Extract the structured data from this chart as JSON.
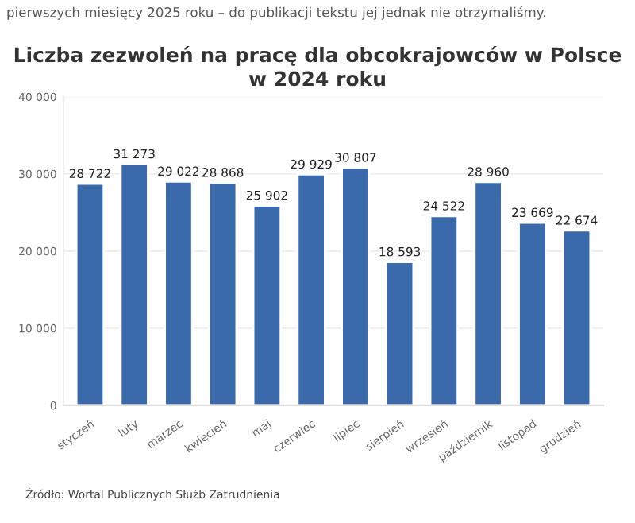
{
  "chart_data": {
    "type": "bar",
    "title": "Liczba zezwoleń na pracę dla obcokrajowców w Polsce\nw 2024 roku",
    "categories": [
      "styczeń",
      "luty",
      "marzec",
      "kwiecień",
      "maj",
      "czerwiec",
      "lipiec",
      "sierpień",
      "wrzesień",
      "październik",
      "listopad",
      "grudzień"
    ],
    "values": [
      28722,
      31273,
      29022,
      28868,
      25902,
      29929,
      30807,
      18593,
      24522,
      28960,
      23669,
      22674
    ],
    "value_labels": [
      "28 722",
      "31 273",
      "29 022",
      "28 868",
      "25 902",
      "29 929",
      "30 807",
      "18 593",
      "24 522",
      "28 960",
      "23 669",
      "22 674"
    ],
    "color": "#3b6aaa",
    "ylim": [
      0,
      40000
    ],
    "yticks": [
      {
        "value": 0,
        "label": "0"
      },
      {
        "value": 10000,
        "label": "10 000"
      },
      {
        "value": 20000,
        "label": "20 000"
      },
      {
        "value": 30000,
        "label": "30 000"
      },
      {
        "value": 40000,
        "label": "40 000"
      }
    ],
    "grid": "y",
    "annotations": [
      "pierwszych miesięcy 2025 roku – do publikacji tekstu jej jednak nie otrzymaliśmy.",
      "Źródło: Wortal Publicznych Służb Zatrudnienia"
    ]
  }
}
